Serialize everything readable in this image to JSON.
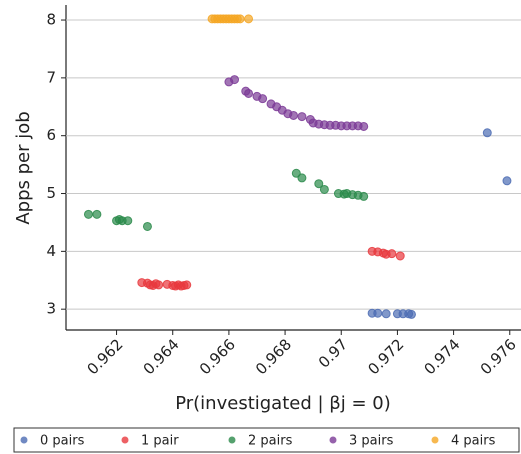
{
  "chart_data": {
    "type": "scatter",
    "x_label": "Pr(investigated | βj = 0)",
    "y_label": "Apps per job",
    "xlim": [
      0.9602,
      0.9764
    ],
    "ylim": [
      2.64,
      8.26
    ],
    "xticks": [
      0.962,
      0.964,
      0.966,
      0.968,
      0.97,
      0.972,
      0.974,
      0.976
    ],
    "yticks": [
      3,
      4,
      5,
      6,
      7,
      8
    ],
    "grid": true,
    "legend": "bottom",
    "series": [
      {
        "name": "0 pairs",
        "color": "#4c6cb3",
        "x": [
          0.9752,
          0.9759,
          0.9711,
          0.9713,
          0.9716,
          0.972,
          0.9722,
          0.9724,
          0.9725
        ],
        "values": [
          6.05,
          5.22,
          2.93,
          2.93,
          2.92,
          2.92,
          2.92,
          2.92,
          2.91
        ]
      },
      {
        "name": "1 pair",
        "color": "#e8383d",
        "x": [
          0.9629,
          0.9631,
          0.9632,
          0.9633,
          0.9634,
          0.9635,
          0.9638,
          0.964,
          0.9641,
          0.9642,
          0.9643,
          0.9644,
          0.9645,
          0.9711,
          0.9713,
          0.9715,
          0.9716,
          0.9718,
          0.9721
        ],
        "values": [
          3.46,
          3.45,
          3.42,
          3.41,
          3.44,
          3.42,
          3.43,
          3.41,
          3.4,
          3.42,
          3.4,
          3.41,
          3.42,
          4.0,
          3.99,
          3.97,
          3.95,
          3.96,
          3.92
        ]
      },
      {
        "name": "2 pairs",
        "color": "#2a8a4a",
        "x": [
          0.961,
          0.9613,
          0.962,
          0.9621,
          0.9622,
          0.9624,
          0.9631,
          0.9684,
          0.9686,
          0.9692,
          0.9694,
          0.9699,
          0.9701,
          0.9702,
          0.9704,
          0.9706,
          0.9708
        ],
        "values": [
          4.64,
          4.64,
          4.53,
          4.55,
          4.53,
          4.53,
          4.43,
          5.35,
          5.27,
          5.17,
          5.07,
          5.0,
          4.99,
          5.0,
          4.98,
          4.97,
          4.95
        ]
      },
      {
        "name": "3 pairs",
        "color": "#7b3a96",
        "x": [
          0.966,
          0.9662,
          0.9666,
          0.9667,
          0.967,
          0.9672,
          0.9675,
          0.9677,
          0.9679,
          0.9681,
          0.9683,
          0.9686,
          0.9689,
          0.969,
          0.9692,
          0.9694,
          0.9696,
          0.9698,
          0.97,
          0.9702,
          0.9704,
          0.9706,
          0.9708
        ],
        "values": [
          6.93,
          6.97,
          6.77,
          6.73,
          6.68,
          6.64,
          6.55,
          6.5,
          6.44,
          6.38,
          6.35,
          6.33,
          6.28,
          6.22,
          6.2,
          6.19,
          6.18,
          6.18,
          6.17,
          6.17,
          6.17,
          6.17,
          6.16
        ]
      },
      {
        "name": "4 pairs",
        "color": "#f5a623",
        "x": [
          0.9654,
          0.9655,
          0.9656,
          0.9657,
          0.9658,
          0.9659,
          0.966,
          0.9661,
          0.9662,
          0.9663,
          0.9664,
          0.9667
        ],
        "values": [
          8.02,
          8.02,
          8.02,
          8.02,
          8.02,
          8.02,
          8.02,
          8.02,
          8.02,
          8.02,
          8.02,
          8.02
        ]
      }
    ]
  }
}
